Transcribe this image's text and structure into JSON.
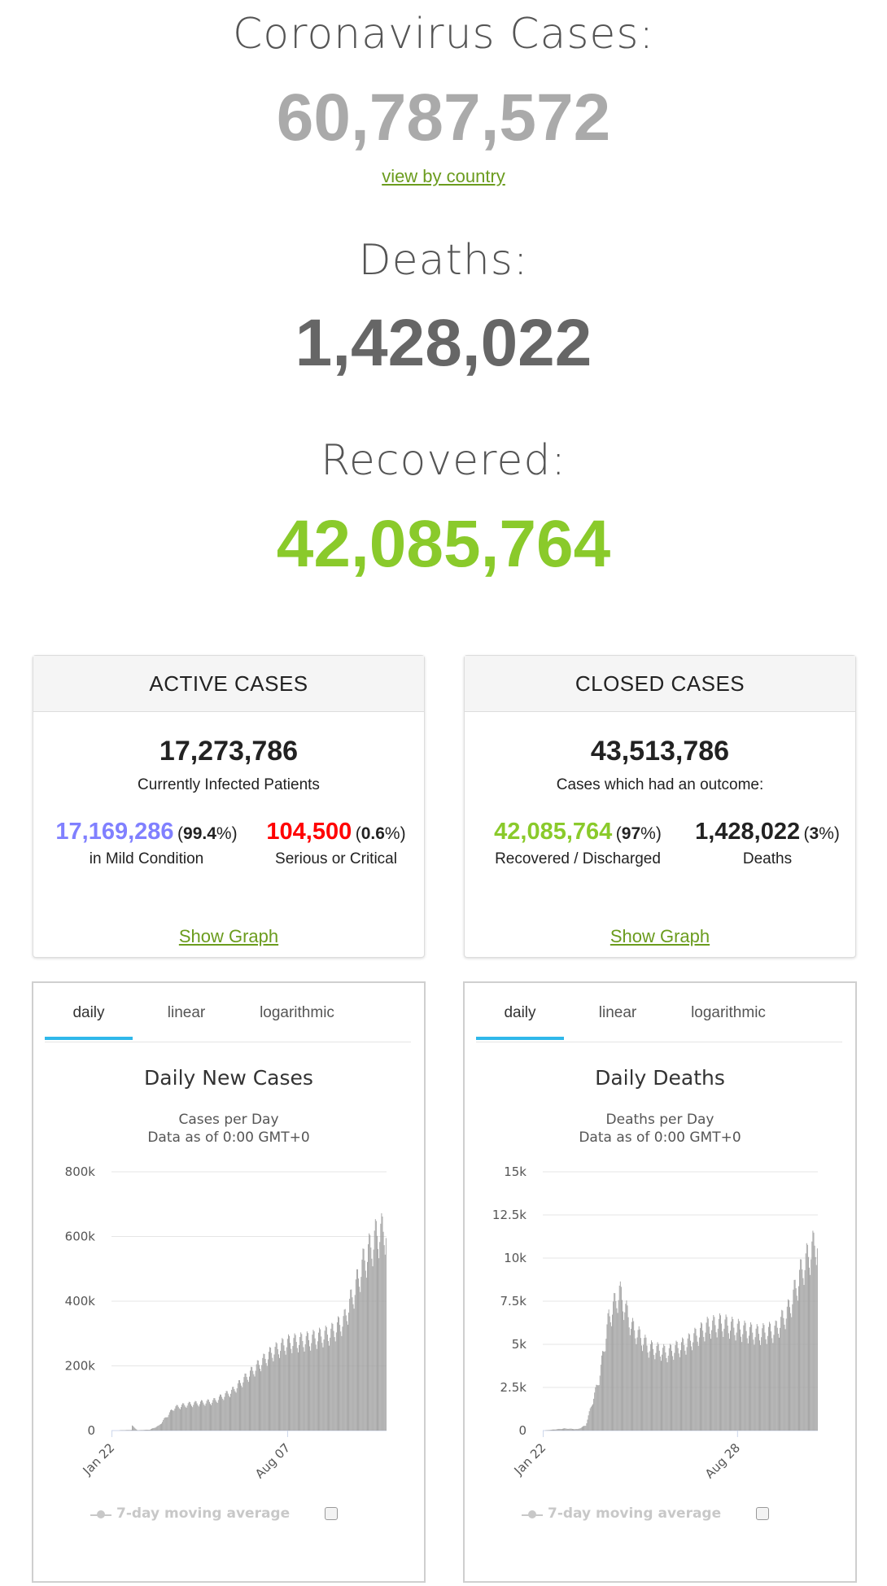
{
  "summary": {
    "cases_label": "Coronavirus Cases:",
    "cases_value": "60,787,572",
    "view_by_country": "view by country",
    "deaths_label": "Deaths:",
    "deaths_value": "1,428,022",
    "recovered_label": "Recovered:",
    "recovered_value": "42,085,764"
  },
  "active": {
    "title": "ACTIVE CASES",
    "total": "17,273,786",
    "subtitle": "Currently Infected Patients",
    "mild_value": "17,169,286",
    "mild_pct_open": "(",
    "mild_pct": "99.4",
    "mild_pct_close": "%)",
    "mild_label": "in Mild Condition",
    "critical_value": "104,500",
    "critical_pct_open": "(",
    "critical_pct": "0.6",
    "critical_pct_close": "%)",
    "critical_label": "Serious or Critical",
    "show_graph": "Show Graph"
  },
  "closed": {
    "title": "CLOSED CASES",
    "total": "43,513,786",
    "subtitle": "Cases which had an outcome:",
    "recovered_value": "42,085,764",
    "recovered_pct_open": "(",
    "recovered_pct": "97",
    "recovered_pct_close": "%)",
    "recovered_label": "Recovered / Discharged",
    "deaths_value": "1,428,022",
    "deaths_pct_open": "(",
    "deaths_pct": "3",
    "deaths_pct_close": "%)",
    "deaths_label": "Deaths",
    "show_graph": "Show Graph"
  },
  "tabs": [
    "daily",
    "linear",
    "logarithmic"
  ],
  "legend": "7-day moving average",
  "colors": {
    "bars": "#a0a0a0",
    "tab_active": "#2fb8ea",
    "recovered": "#8ACA2B",
    "mild": "#8080FF",
    "critical": "#FF0000"
  },
  "chart_data": [
    {
      "type": "bar",
      "title": "Daily New Cases",
      "subtitle": "Cases per Day",
      "subtitle2": "Data as of 0:00 GMT+0",
      "ylim": [
        0,
        800000
      ],
      "yticks": [
        0,
        200000,
        400000,
        600000,
        800000
      ],
      "ytick_labels": [
        "0",
        "200k",
        "400k",
        "600k",
        "800k"
      ],
      "x_start": "Jan 22",
      "x_end": "Nov 26",
      "xticks": [
        "Jan 22",
        "Aug 07"
      ],
      "grid": true,
      "legend_position": "bottom",
      "trend_anchors": [
        [
          "Jan 22",
          0
        ],
        [
          "Feb 13",
          2000
        ],
        [
          "Feb 14",
          15000
        ],
        [
          "Feb 20",
          1000
        ],
        [
          "Mar 05",
          3000
        ],
        [
          "Mar 15",
          15000
        ],
        [
          "Apr 01",
          70000
        ],
        [
          "Apr 15",
          80000
        ],
        [
          "May 15",
          90000
        ],
        [
          "Jun 05",
          120000
        ],
        [
          "Jul 01",
          190000
        ],
        [
          "Jul 20",
          240000
        ],
        [
          "Aug 07",
          270000
        ],
        [
          "Sep 01",
          280000
        ],
        [
          "Sep 25",
          300000
        ],
        [
          "Oct 10",
          340000
        ],
        [
          "Oct 20",
          420000
        ],
        [
          "Nov 01",
          520000
        ],
        [
          "Nov 15",
          600000
        ],
        [
          "Nov 26",
          620000
        ]
      ]
    },
    {
      "type": "bar",
      "title": "Daily Deaths",
      "subtitle": "Deaths per Day",
      "subtitle2": "Data as of 0:00 GMT+0",
      "ylim": [
        0,
        15000
      ],
      "yticks": [
        0,
        2500,
        5000,
        7500,
        10000,
        12500,
        15000
      ],
      "ytick_labels": [
        "0",
        "2.5k",
        "5k",
        "7.5k",
        "10k",
        "12.5k",
        "15k"
      ],
      "x_start": "Jan 22",
      "x_end": "Nov 26",
      "xticks": [
        "Jan 22",
        "Aug 28"
      ],
      "grid": true,
      "legend_position": "bottom",
      "trend_anchors": [
        [
          "Jan 22",
          0
        ],
        [
          "Feb 15",
          120
        ],
        [
          "Mar 01",
          80
        ],
        [
          "Mar 10",
          300
        ],
        [
          "Mar 25",
          3000
        ],
        [
          "Apr 05",
          6500
        ],
        [
          "Apr 17",
          8000
        ],
        [
          "May 01",
          6000
        ],
        [
          "May 20",
          4800
        ],
        [
          "Jun 10",
          4500
        ],
        [
          "Jul 01",
          5000
        ],
        [
          "Jul 25",
          6000
        ],
        [
          "Aug 10",
          6200
        ],
        [
          "Aug 28",
          5900
        ],
        [
          "Sep 20",
          5600
        ],
        [
          "Oct 10",
          5800
        ],
        [
          "Oct 25",
          7000
        ],
        [
          "Nov 10",
          9500
        ],
        [
          "Nov 26",
          11000
        ]
      ]
    }
  ]
}
